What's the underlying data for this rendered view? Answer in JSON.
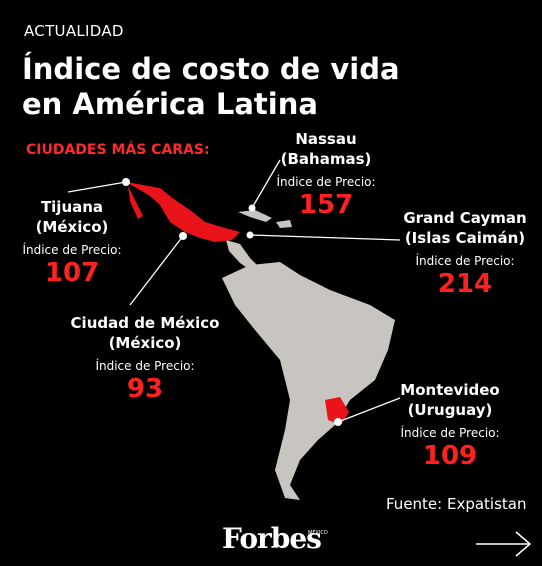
{
  "header": {
    "section": "ACTUALIDAD",
    "title": "Índice de costo de vida en América Latina",
    "subtitle": "CIUDADES MÁS CARAS:"
  },
  "cities": [
    {
      "name": "Nassau",
      "country": "(Bahamas)",
      "label": "Índice de Precio:",
      "value": 157
    },
    {
      "name": "Tijuana",
      "country": "(México)",
      "label": "Índice de Precio:",
      "value": 107
    },
    {
      "name": "Grand Cayman",
      "country": "(Islas Caimán)",
      "label": "Índice de Precio:",
      "value": 214
    },
    {
      "name": "Ciudad de México",
      "country": "(México)",
      "label": "Índice de Precio:",
      "value": 93
    },
    {
      "name": "Montevideo",
      "country": "(Uruguay)",
      "label": "Índice de Precio:",
      "value": 109
    }
  ],
  "footer": {
    "source": "Fuente: Expatistan",
    "brand": "Forbes",
    "edition": "MÉXICO"
  }
}
